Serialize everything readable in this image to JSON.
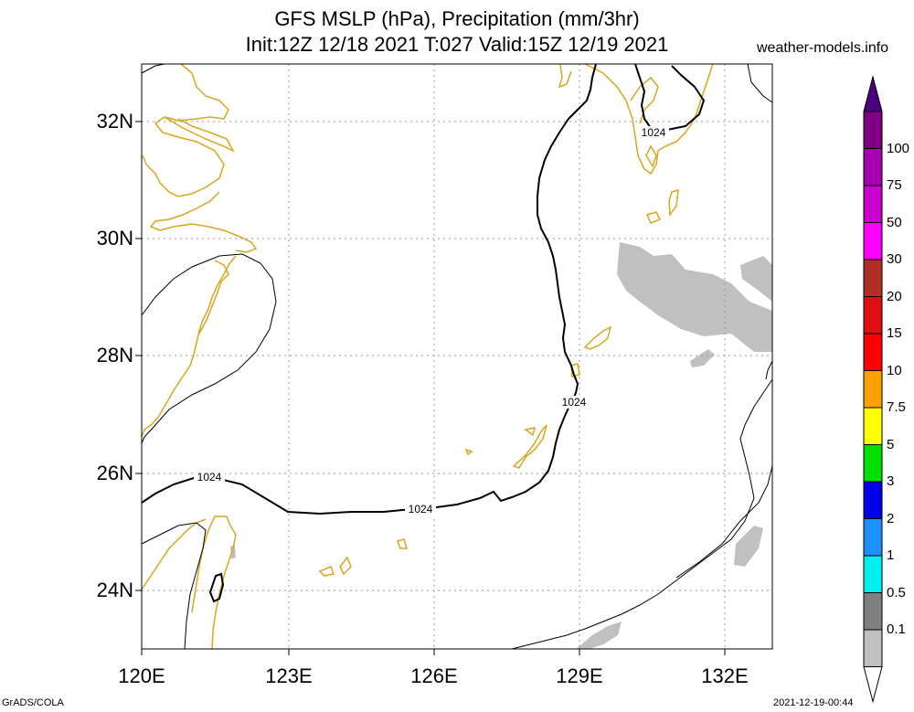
{
  "header": {
    "title_line1": "GFS MSLP (hPa), Precipitation (mm/3hr)",
    "title_line2": "Init:12Z 12/18 2021 T:027 Valid:15Z 12/19 2021",
    "site": "weather-models.info"
  },
  "axes": {
    "x_ticks": [
      "120E",
      "123E",
      "126E",
      "129E",
      "132E"
    ],
    "y_ticks": [
      "32N",
      "30N",
      "28N",
      "26N",
      "24N"
    ],
    "lon_range": [
      120,
      133
    ],
    "lat_range": [
      23,
      33
    ],
    "grid": "dotted"
  },
  "contours": {
    "isobar_labels": [
      "1024",
      "1024",
      "1024",
      "1024"
    ]
  },
  "colorbar": {
    "labels": [
      "100",
      "75",
      "50",
      "30",
      "20",
      "15",
      "10",
      "7.5",
      "5",
      "3",
      "2",
      "1",
      "0.5",
      "0.1"
    ],
    "colors": [
      "#7f0080",
      "#a600b3",
      "#cc00cc",
      "#ff00ff",
      "#b03028",
      "#e01010",
      "#ff0000",
      "#ffa000",
      "#ffff00",
      "#00e000",
      "#0000e8",
      "#1e90ff",
      "#00f0f0",
      "#808080",
      "#c0c0c0"
    ],
    "top_color": "#4b0082"
  },
  "colors": {
    "coastline": "#daa520",
    "precip_light": "#c0c0c0"
  },
  "footer": {
    "left": "GrADS/COLA",
    "right": "2021-12-19-00:44"
  }
}
